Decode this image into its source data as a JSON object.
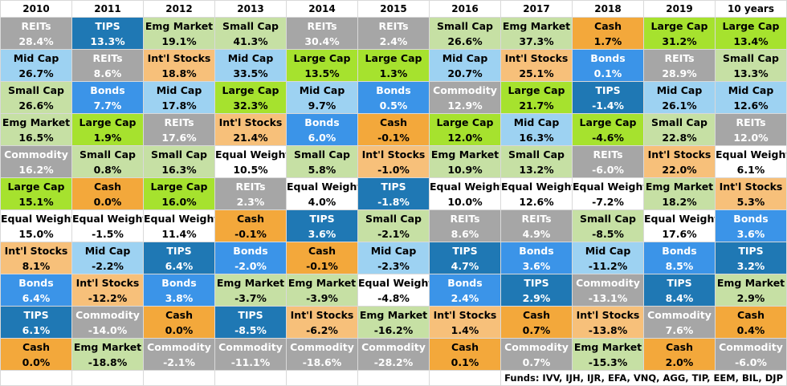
{
  "colors": {
    "REITs": "#a6a6a6",
    "TIPS": "#1f78b4",
    "Emg Market": "#c6e0a4",
    "Small Cap": "#c6e0a4",
    "Cash": "#f3a83b",
    "Large Cap": "#a6e22e",
    "Mid Cap": "#9dd2f2",
    "Int'l Stocks": "#f7c07a",
    "Bonds": "#3b94e8",
    "Commodity": "#a6a6a6",
    "Equal Weight": "#ffffff"
  },
  "text_white_classes": [
    "REITs",
    "TIPS",
    "Bonds",
    "Commodity"
  ],
  "chart_data": {
    "type": "table",
    "columns": [
      "2010",
      "2011",
      "2012",
      "2013",
      "2014",
      "2015",
      "2016",
      "2017",
      "2018",
      "2019",
      "10 years"
    ],
    "rows": [
      [
        [
          "REITs",
          "28.4%"
        ],
        [
          "TIPS",
          "13.3%"
        ],
        [
          "Emg Market",
          "19.1%"
        ],
        [
          "Small Cap",
          "41.3%"
        ],
        [
          "REITs",
          "30.4%"
        ],
        [
          "REITs",
          "2.4%"
        ],
        [
          "Small Cap",
          "26.6%"
        ],
        [
          "Emg Market",
          "37.3%"
        ],
        [
          "Cash",
          "1.7%"
        ],
        [
          "Large Cap",
          "31.2%"
        ],
        [
          "Large Cap",
          "13.4%"
        ]
      ],
      [
        [
          "Mid Cap",
          "26.7%"
        ],
        [
          "REITs",
          "8.6%"
        ],
        [
          "Int'l Stocks",
          "18.8%"
        ],
        [
          "Mid Cap",
          "33.5%"
        ],
        [
          "Large Cap",
          "13.5%"
        ],
        [
          "Large Cap",
          "1.3%"
        ],
        [
          "Mid Cap",
          "20.7%"
        ],
        [
          "Int'l Stocks",
          "25.1%"
        ],
        [
          "Bonds",
          "0.1%"
        ],
        [
          "REITs",
          "28.9%"
        ],
        [
          "Small Cap",
          "13.3%"
        ]
      ],
      [
        [
          "Small Cap",
          "26.6%"
        ],
        [
          "Bonds",
          "7.7%"
        ],
        [
          "Mid Cap",
          "17.8%"
        ],
        [
          "Large Cap",
          "32.3%"
        ],
        [
          "Mid Cap",
          "9.7%"
        ],
        [
          "Bonds",
          "0.5%"
        ],
        [
          "Commodity",
          "12.9%"
        ],
        [
          "Large Cap",
          "21.7%"
        ],
        [
          "TIPS",
          "-1.4%"
        ],
        [
          "Mid Cap",
          "26.1%"
        ],
        [
          "Mid Cap",
          "12.6%"
        ]
      ],
      [
        [
          "Emg Market",
          "16.5%"
        ],
        [
          "Large Cap",
          "1.9%"
        ],
        [
          "REITs",
          "17.6%"
        ],
        [
          "Int'l Stocks",
          "21.4%"
        ],
        [
          "Bonds",
          "6.0%"
        ],
        [
          "Cash",
          "-0.1%"
        ],
        [
          "Large Cap",
          "12.0%"
        ],
        [
          "Mid Cap",
          "16.3%"
        ],
        [
          "Large Cap",
          "-4.6%"
        ],
        [
          "Small Cap",
          "22.8%"
        ],
        [
          "REITs",
          "12.0%"
        ]
      ],
      [
        [
          "Commodity",
          "16.2%"
        ],
        [
          "Small Cap",
          "0.8%"
        ],
        [
          "Small Cap",
          "16.3%"
        ],
        [
          "Equal Weight",
          "10.5%"
        ],
        [
          "Small Cap",
          "5.8%"
        ],
        [
          "Int'l Stocks",
          "-1.0%"
        ],
        [
          "Emg Market",
          "10.9%"
        ],
        [
          "Small Cap",
          "13.2%"
        ],
        [
          "REITs",
          "-6.0%"
        ],
        [
          "Int'l Stocks",
          "22.0%"
        ],
        [
          "Equal Weight",
          "6.1%"
        ]
      ],
      [
        [
          "Large Cap",
          "15.1%"
        ],
        [
          "Cash",
          "0.0%"
        ],
        [
          "Large Cap",
          "16.0%"
        ],
        [
          "REITs",
          "2.3%"
        ],
        [
          "Equal Weight",
          "4.0%"
        ],
        [
          "TIPS",
          "-1.8%"
        ],
        [
          "Equal Weight",
          "10.0%"
        ],
        [
          "Equal Weight",
          "12.6%"
        ],
        [
          "Equal Weight",
          "-7.2%"
        ],
        [
          "Emg Market",
          "18.2%"
        ],
        [
          "Int'l Stocks",
          "5.3%"
        ]
      ],
      [
        [
          "Equal Weight",
          "15.0%"
        ],
        [
          "Equal Weight",
          "-1.5%"
        ],
        [
          "Equal Weight",
          "11.4%"
        ],
        [
          "Cash",
          "-0.1%"
        ],
        [
          "TIPS",
          "3.6%"
        ],
        [
          "Small Cap",
          "-2.1%"
        ],
        [
          "REITs",
          "8.6%"
        ],
        [
          "REITs",
          "4.9%"
        ],
        [
          "Small Cap",
          "-8.5%"
        ],
        [
          "Equal Weight",
          "17.6%"
        ],
        [
          "Bonds",
          "3.6%"
        ]
      ],
      [
        [
          "Int'l Stocks",
          "8.1%"
        ],
        [
          "Mid Cap",
          "-2.2%"
        ],
        [
          "TIPS",
          "6.4%"
        ],
        [
          "Bonds",
          "-2.0%"
        ],
        [
          "Cash",
          "-0.1%"
        ],
        [
          "Mid Cap",
          "-2.3%"
        ],
        [
          "TIPS",
          "4.7%"
        ],
        [
          "Bonds",
          "3.6%"
        ],
        [
          "Mid Cap",
          "-11.2%"
        ],
        [
          "Bonds",
          "8.5%"
        ],
        [
          "TIPS",
          "3.2%"
        ]
      ],
      [
        [
          "Bonds",
          "6.4%"
        ],
        [
          "Int'l Stocks",
          "-12.2%"
        ],
        [
          "Bonds",
          "3.8%"
        ],
        [
          "Emg Market",
          "-3.7%"
        ],
        [
          "Emg Market",
          "-3.9%"
        ],
        [
          "Equal Weight",
          "-4.8%"
        ],
        [
          "Bonds",
          "2.4%"
        ],
        [
          "TIPS",
          "2.9%"
        ],
        [
          "Commodity",
          "-13.1%"
        ],
        [
          "TIPS",
          "8.4%"
        ],
        [
          "Emg Market",
          "2.9%"
        ]
      ],
      [
        [
          "TIPS",
          "6.1%"
        ],
        [
          "Commodity",
          "-14.0%"
        ],
        [
          "Cash",
          "0.0%"
        ],
        [
          "TIPS",
          "-8.5%"
        ],
        [
          "Int'l Stocks",
          "-6.2%"
        ],
        [
          "Emg Market",
          "-16.2%"
        ],
        [
          "Int'l Stocks",
          "1.4%"
        ],
        [
          "Cash",
          "0.7%"
        ],
        [
          "Int'l Stocks",
          "-13.8%"
        ],
        [
          "Commodity",
          "7.6%"
        ],
        [
          "Cash",
          "0.4%"
        ]
      ],
      [
        [
          "Cash",
          "0.0%"
        ],
        [
          "Emg Market",
          "-18.8%"
        ],
        [
          "Commodity",
          "-2.1%"
        ],
        [
          "Commodity",
          "-11.1%"
        ],
        [
          "Commodity",
          "-18.6%"
        ],
        [
          "Commodity",
          "-28.2%"
        ],
        [
          "Cash",
          "0.1%"
        ],
        [
          "Commodity",
          "0.7%"
        ],
        [
          "Emg Market",
          "-15.3%"
        ],
        [
          "Cash",
          "2.0%"
        ],
        [
          "Commodity",
          "-6.0%"
        ]
      ]
    ],
    "footnote": "Funds: IVV, IJH, IJR, EFA, VNQ, AGG, TIP, EEM, BIL, DJP"
  }
}
